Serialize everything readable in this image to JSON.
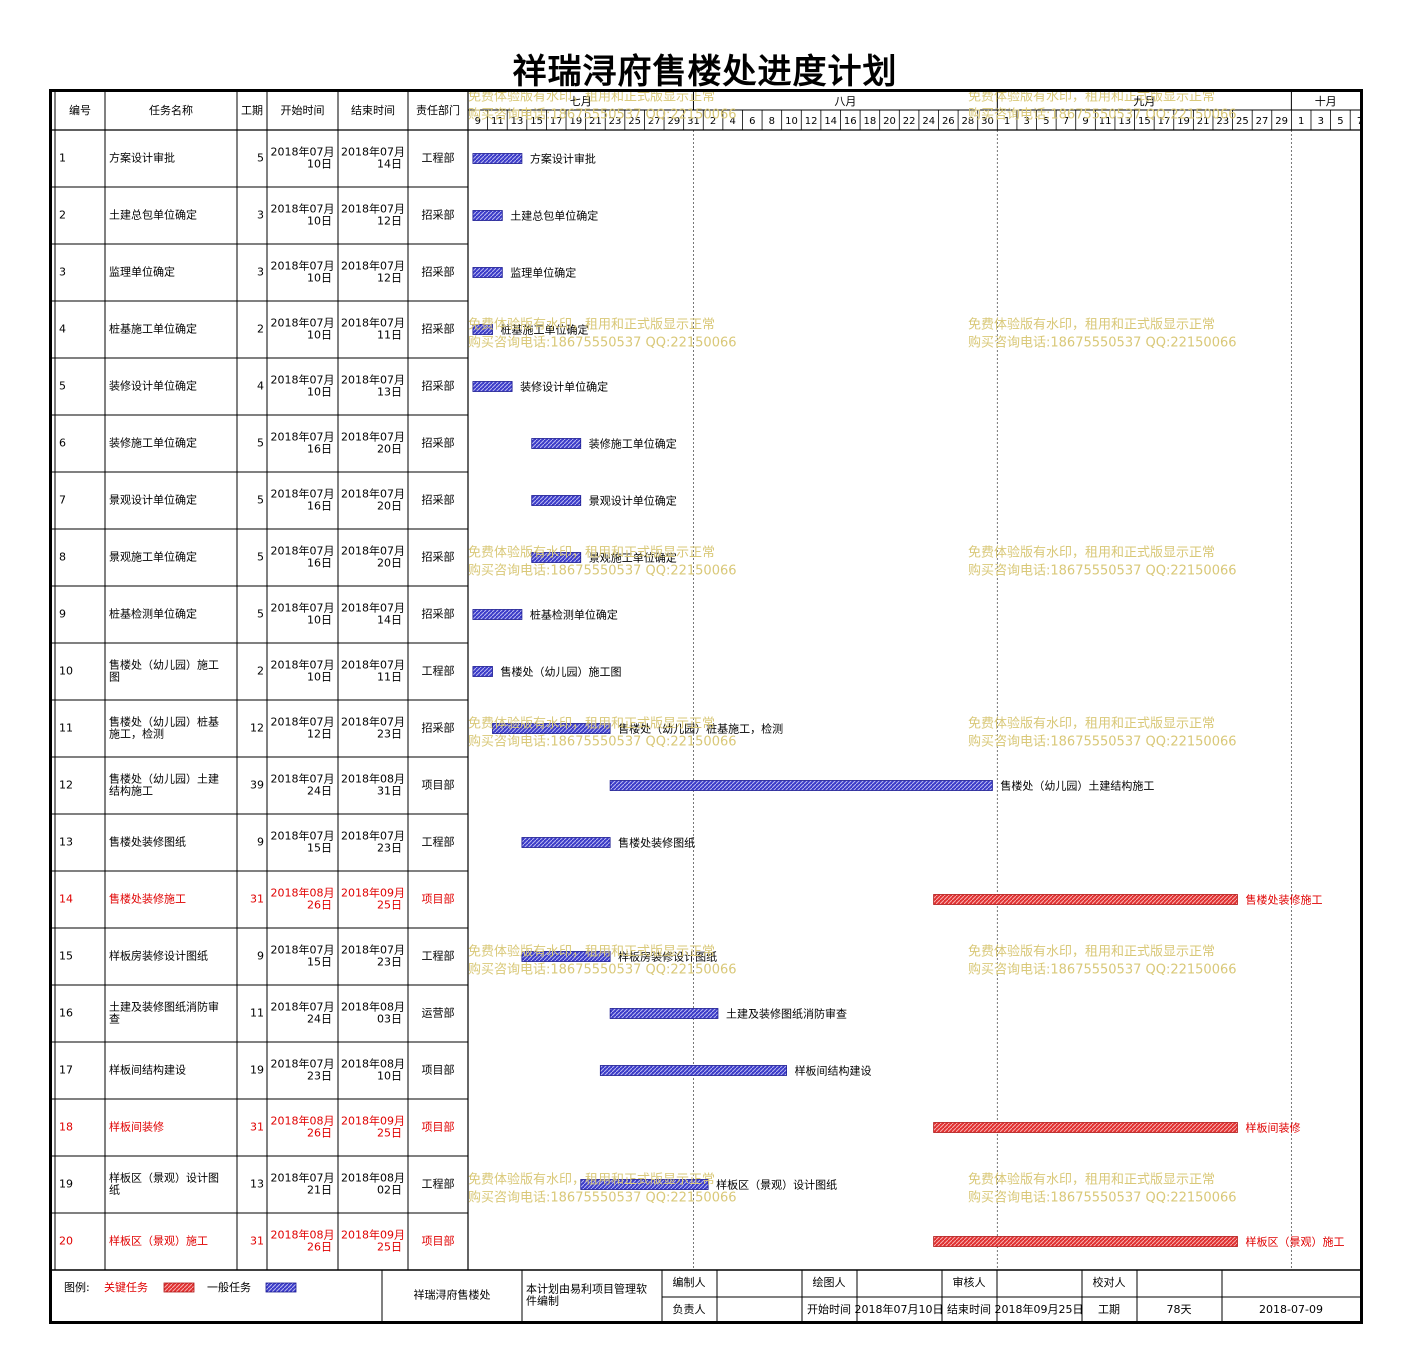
{
  "chart_data": {
    "type": "gantt",
    "title": "祥瑞浔府售楼处进度计划",
    "columns": [
      "编号",
      "任务名称",
      "工期",
      "开始时间",
      "结束时间",
      "责任部门"
    ],
    "timeline": {
      "start": "2018-07-09",
      "end": "2018-10-08",
      "months": [
        {
          "label": "七月",
          "start": "2018-07-09"
        },
        {
          "label": "八月",
          "start": "2018-08-01"
        },
        {
          "label": "九月",
          "start": "2018-09-01"
        },
        {
          "label": "十月",
          "start": "2018-10-01"
        }
      ],
      "day_ticks": [
        "9",
        "11",
        "13",
        "15",
        "17",
        "19",
        "21",
        "23",
        "25",
        "27",
        "29",
        "31",
        "2",
        "4",
        "6",
        "8",
        "10",
        "12",
        "14",
        "16",
        "18",
        "20",
        "22",
        "24",
        "26",
        "28",
        "30",
        "1",
        "3",
        "5",
        "7",
        "9",
        "11",
        "13",
        "15",
        "17",
        "19",
        "21",
        "23",
        "25",
        "27",
        "29",
        "1",
        "3",
        "5",
        "7"
      ]
    },
    "tasks": [
      {
        "id": "1",
        "name": "方案设计审批",
        "duration": "5",
        "start": "2018年07月10日",
        "end": "2018年07月14日",
        "dept": "工程部",
        "bar_start": "2018-07-10",
        "bar_end": "2018-07-14",
        "critical": false
      },
      {
        "id": "2",
        "name": "土建总包单位确定",
        "duration": "3",
        "start": "2018年07月10日",
        "end": "2018年07月12日",
        "dept": "招采部",
        "bar_start": "2018-07-10",
        "bar_end": "2018-07-12",
        "critical": false
      },
      {
        "id": "3",
        "name": "监理单位确定",
        "duration": "3",
        "start": "2018年07月10日",
        "end": "2018年07月12日",
        "dept": "招采部",
        "bar_start": "2018-07-10",
        "bar_end": "2018-07-12",
        "critical": false
      },
      {
        "id": "4",
        "name": "桩基施工单位确定",
        "duration": "2",
        "start": "2018年07月10日",
        "end": "2018年07月11日",
        "dept": "招采部",
        "bar_start": "2018-07-10",
        "bar_end": "2018-07-11",
        "critical": false
      },
      {
        "id": "5",
        "name": "装修设计单位确定",
        "duration": "4",
        "start": "2018年07月10日",
        "end": "2018年07月13日",
        "dept": "招采部",
        "bar_start": "2018-07-10",
        "bar_end": "2018-07-13",
        "critical": false
      },
      {
        "id": "6",
        "name": "装修施工单位确定",
        "duration": "5",
        "start": "2018年07月16日",
        "end": "2018年07月20日",
        "dept": "招采部",
        "bar_start": "2018-07-16",
        "bar_end": "2018-07-20",
        "critical": false
      },
      {
        "id": "7",
        "name": "景观设计单位确定",
        "duration": "5",
        "start": "2018年07月16日",
        "end": "2018年07月20日",
        "dept": "招采部",
        "bar_start": "2018-07-16",
        "bar_end": "2018-07-20",
        "critical": false
      },
      {
        "id": "8",
        "name": "景观施工单位确定",
        "duration": "5",
        "start": "2018年07月16日",
        "end": "2018年07月20日",
        "dept": "招采部",
        "bar_start": "2018-07-16",
        "bar_end": "2018-07-20",
        "critical": false
      },
      {
        "id": "9",
        "name": "桩基检测单位确定",
        "duration": "5",
        "start": "2018年07月10日",
        "end": "2018年07月14日",
        "dept": "招采部",
        "bar_start": "2018-07-10",
        "bar_end": "2018-07-14",
        "critical": false
      },
      {
        "id": "10",
        "name": "售楼处（幼儿园）施工图",
        "duration": "2",
        "start": "2018年07月10日",
        "end": "2018年07月11日",
        "dept": "工程部",
        "bar_start": "2018-07-10",
        "bar_end": "2018-07-11",
        "critical": false
      },
      {
        "id": "11",
        "name": "售楼处（幼儿园）桩基施工，检测",
        "duration": "12",
        "start": "2018年07月12日",
        "end": "2018年07月23日",
        "dept": "招采部",
        "bar_start": "2018-07-12",
        "bar_end": "2018-07-23",
        "critical": false
      },
      {
        "id": "12",
        "name": "售楼处（幼儿园）土建结构施工",
        "duration": "39",
        "start": "2018年07月24日",
        "end": "2018年08月31日",
        "dept": "项目部",
        "bar_start": "2018-07-24",
        "bar_end": "2018-08-31",
        "critical": false
      },
      {
        "id": "13",
        "name": "售楼处装修图纸",
        "duration": "9",
        "start": "2018年07月15日",
        "end": "2018年07月23日",
        "dept": "工程部",
        "bar_start": "2018-07-15",
        "bar_end": "2018-07-23",
        "critical": false
      },
      {
        "id": "14",
        "name": "售楼处装修施工",
        "duration": "31",
        "start": "2018年08月26日",
        "end": "2018年09月25日",
        "dept": "项目部",
        "bar_start": "2018-08-26",
        "bar_end": "2018-09-25",
        "critical": true
      },
      {
        "id": "15",
        "name": "样板房装修设计图纸",
        "duration": "9",
        "start": "2018年07月15日",
        "end": "2018年07月23日",
        "dept": "工程部",
        "bar_start": "2018-07-15",
        "bar_end": "2018-07-23",
        "critical": false
      },
      {
        "id": "16",
        "name": "土建及装修图纸消防审查",
        "duration": "11",
        "start": "2018年07月24日",
        "end": "2018年08月03日",
        "dept": "运营部",
        "bar_start": "2018-07-24",
        "bar_end": "2018-08-03",
        "critical": false
      },
      {
        "id": "17",
        "name": "样板间结构建设",
        "duration": "19",
        "start": "2018年07月23日",
        "end": "2018年08月10日",
        "dept": "项目部",
        "bar_start": "2018-07-23",
        "bar_end": "2018-08-10",
        "critical": false
      },
      {
        "id": "18",
        "name": "样板间装修",
        "duration": "31",
        "start": "2018年08月26日",
        "end": "2018年09月25日",
        "dept": "项目部",
        "bar_start": "2018-08-26",
        "bar_end": "2018-09-25",
        "critical": true
      },
      {
        "id": "19",
        "name": "样板区（景观）设计图纸",
        "duration": "13",
        "start": "2018年07月21日",
        "end": "2018年08月02日",
        "dept": "工程部",
        "bar_start": "2018-07-21",
        "bar_end": "2018-08-02",
        "critical": false
      },
      {
        "id": "20",
        "name": "样板区（景观）施工",
        "duration": "31",
        "start": "2018年08月26日",
        "end": "2018年09月25日",
        "dept": "项目部",
        "bar_start": "2018-08-26",
        "bar_end": "2018-09-25",
        "critical": true
      }
    ],
    "watermark": {
      "line1": "免费体验版有水印，租用和正式版显示正常",
      "line2": "购买咨询电话:18675550537 QQ:22150066"
    },
    "colors": {
      "normal_bar": "#3b3bc8",
      "critical_bar": "#e03030",
      "critical_text": "#e00000",
      "watermark": "#d9c878"
    }
  },
  "footer": {
    "legend_label": "图例:",
    "legend_critical": "关键任务",
    "legend_normal": "一般任务",
    "project_name": "祥瑞浔府售楼处",
    "software_note": "本计划由易利项目管理软件编制",
    "editor_label": "编制人",
    "editor_value": "",
    "drawer_label": "绘图人",
    "drawer_value": "",
    "reviewer_label": "审核人",
    "reviewer_value": "",
    "checker_label": "校对人",
    "checker_value": "",
    "owner_label": "负责人",
    "owner_value": "",
    "start_label": "开始时间",
    "start_value": "2018年07月10日",
    "end_label": "结束时间",
    "end_value": "2018年09月25日",
    "duration_label": "工期",
    "duration_value": "78天",
    "date_value": "2018-07-09"
  }
}
